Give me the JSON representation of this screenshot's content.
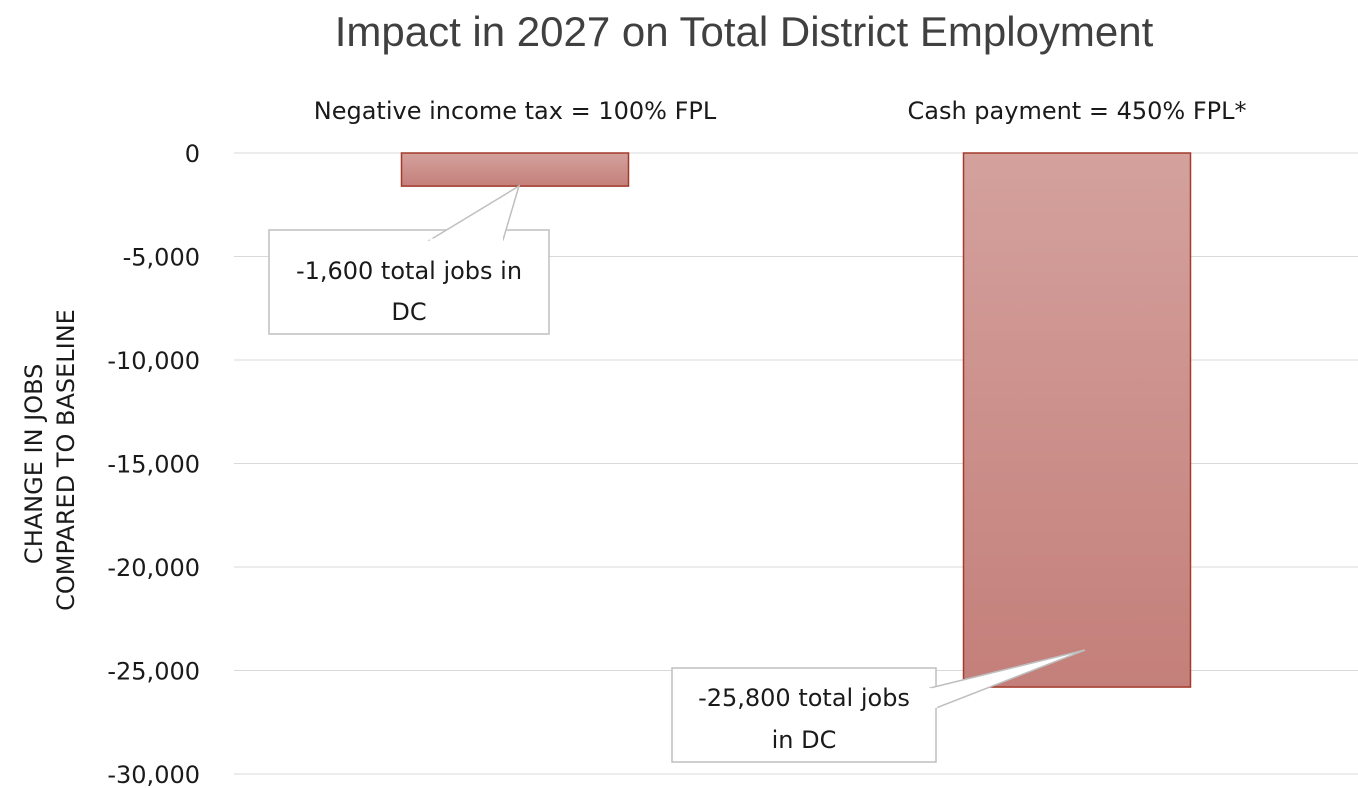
{
  "chart_data": {
    "type": "bar",
    "title": "Impact in 2027 on Total District Employment",
    "categories": [
      "Negative income tax = 100% FPL",
      "Cash payment = 450% FPL*"
    ],
    "values": [
      -1600,
      -25800
    ],
    "ylabel": [
      "CHANGE IN JOBS",
      "COMPARED TO BASELINE"
    ],
    "xlabel": "",
    "ylim": [
      -30000,
      0
    ],
    "yticks": [
      0,
      -5000,
      -10000,
      -15000,
      -20000,
      -25000,
      -30000
    ],
    "ytick_labels": [
      "0",
      "-5,000",
      "-10,000",
      "-15,000",
      "-20,000",
      "-25,000",
      "-30,000"
    ],
    "grid": true,
    "category_position": "top",
    "bar_color_top": "#d4a19d",
    "bar_color_bottom": "#c47f7a",
    "bar_outline": "#a33a2a",
    "annotations": [
      {
        "lines": [
          "-1,600 total jobs in",
          "DC"
        ]
      },
      {
        "lines": [
          "-25,800 total jobs",
          "in DC"
        ]
      }
    ]
  }
}
